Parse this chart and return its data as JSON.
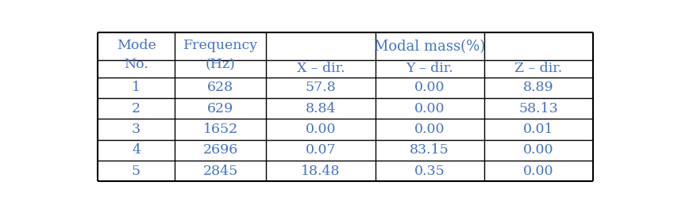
{
  "rows": [
    [
      "1",
      "628",
      "57.8",
      "0.00",
      "8.89"
    ],
    [
      "2",
      "629",
      "8.84",
      "0.00",
      "58.13"
    ],
    [
      "3",
      "1652",
      "0.00",
      "0.00",
      "0.01"
    ],
    [
      "4",
      "2696",
      "0.07",
      "83.15",
      "0.00"
    ],
    [
      "5",
      "2845",
      "18.48",
      "0.35",
      "0.00"
    ]
  ],
  "text_color": "#4472C4",
  "line_color": "#000000",
  "bg_color": "#FFFFFF",
  "font_size": 12.5
}
